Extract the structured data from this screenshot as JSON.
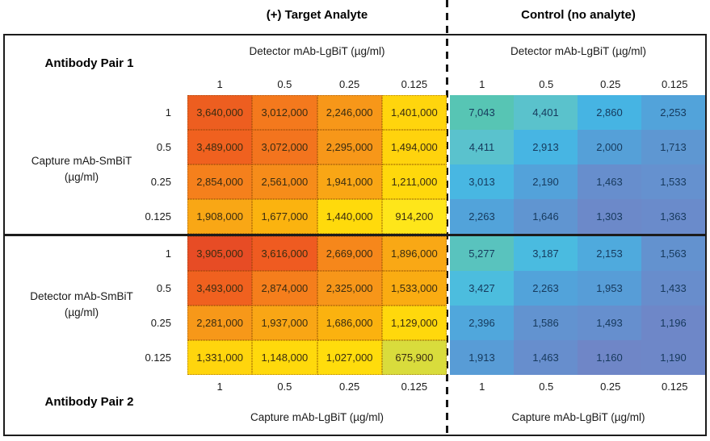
{
  "titles": {
    "target": "(+) Target Analyte",
    "control": "Control (no analyte)"
  },
  "labels": {
    "pair1": "Antibody Pair 1",
    "pair2": "Antibody Pair 2",
    "detector_lgbit": "Detector mAb-LgBiT (µg/ml)",
    "capture_lgbit": "Capture mAb-LgBiT (µg/ml)",
    "capture_smbit_line1": "Capture mAb-SmBiT",
    "detector_smbit_line1": "Detector mAb-SmBiT",
    "unit": "(µg/ml)"
  },
  "chart_data": [
    {
      "id": "pair1-target",
      "type": "heatmap",
      "title": "Antibody Pair 1 — (+) Target Analyte",
      "x_label": "Detector mAb-LgBiT (µg/ml)",
      "y_label": "Capture mAb-SmBiT (µg/ml)",
      "x_ticks": [
        "1",
        "0.5",
        "0.25",
        "0.125"
      ],
      "y_ticks": [
        "1",
        "0.5",
        "0.25",
        "0.125"
      ],
      "values": [
        [
          3640000,
          3012000,
          2246000,
          1401000
        ],
        [
          3489000,
          3072000,
          2295000,
          1494000
        ],
        [
          2854000,
          2561000,
          1941000,
          1211000
        ],
        [
          1908000,
          1677000,
          1440000,
          914200
        ]
      ],
      "display": [
        [
          "3,640,000",
          "3,012,000",
          "2,246,000",
          "1,401,000"
        ],
        [
          "3,489,000",
          "3,072,000",
          "2,295,000",
          "1,494,000"
        ],
        [
          "2,854,000",
          "2,561,000",
          "1,941,000",
          "1,211,000"
        ],
        [
          "1,908,000",
          "1,677,000",
          "1,440,000",
          "914,200"
        ]
      ],
      "cell_colors": [
        [
          "#ED5E20",
          "#F4791D",
          "#F79719",
          "#FFD50D"
        ],
        [
          "#F0611F",
          "#F3741E",
          "#F79719",
          "#FFD30D"
        ],
        [
          "#F5801C",
          "#F68C1A",
          "#F9A615",
          "#FFD80C"
        ],
        [
          "#F9A715",
          "#FBB30F",
          "#FFDA0C",
          "#FEE61A"
        ]
      ],
      "text_color": "#3a2c10",
      "dotted_borders": true
    },
    {
      "id": "pair1-control",
      "type": "heatmap",
      "title": "Antibody Pair 1 — Control (no analyte)",
      "x_label": "Detector mAb-LgBiT (µg/ml)",
      "y_label": "Capture mAb-SmBiT (µg/ml)",
      "x_ticks": [
        "1",
        "0.5",
        "0.25",
        "0.125"
      ],
      "y_ticks": [
        "1",
        "0.5",
        "0.25",
        "0.125"
      ],
      "values": [
        [
          7043,
          4401,
          2860,
          2253
        ],
        [
          4411,
          2913,
          2000,
          1713
        ],
        [
          3013,
          2190,
          1463,
          1533
        ],
        [
          2263,
          1646,
          1303,
          1363
        ]
      ],
      "display": [
        [
          "7,043",
          "4,401",
          "2,860",
          "2,253"
        ],
        [
          "4,411",
          "2,913",
          "2,000",
          "1,713"
        ],
        [
          "3,013",
          "2,190",
          "1,463",
          "1,533"
        ],
        [
          "2,263",
          "1,646",
          "1,303",
          "1,363"
        ]
      ],
      "cell_colors": [
        [
          "#57C5B4",
          "#5AC2CC",
          "#46B4E3",
          "#52A3DA"
        ],
        [
          "#5AC2CD",
          "#47B5E3",
          "#55A0D8",
          "#5E97D2"
        ],
        [
          "#48B7E2",
          "#53A2DA",
          "#678ECD",
          "#6591CF"
        ],
        [
          "#52A3DA",
          "#6095D1",
          "#6C89C9",
          "#6A8BCB"
        ]
      ],
      "text_color": "#16395c",
      "dotted_borders": false
    },
    {
      "id": "pair2-target",
      "type": "heatmap",
      "title": "Antibody Pair 2 — (+) Target Analyte",
      "x_label": "Capture mAb-LgBiT (µg/ml)",
      "y_label": "Detector mAb-SmBiT (µg/ml)",
      "x_ticks": [
        "1",
        "0.5",
        "0.25",
        "0.125"
      ],
      "y_ticks": [
        "1",
        "0.5",
        "0.25",
        "0.125"
      ],
      "values": [
        [
          3905000,
          3616000,
          2669000,
          1896000
        ],
        [
          3493000,
          2874000,
          2325000,
          1533000
        ],
        [
          2281000,
          1937000,
          1686000,
          1129000
        ],
        [
          1331000,
          1148000,
          1027000,
          675900
        ]
      ],
      "display": [
        [
          "3,905,000",
          "3,616,000",
          "2,669,000",
          "1,896,000"
        ],
        [
          "3,493,000",
          "2,874,000",
          "2,325,000",
          "1,533,000"
        ],
        [
          "2,281,000",
          "1,937,000",
          "1,686,000",
          "1,129,000"
        ],
        [
          "1,331,000",
          "1,148,000",
          "1,027,000",
          "675,900"
        ]
      ],
      "cell_colors": [
        [
          "#E74C25",
          "#EF5B21",
          "#F6871B",
          "#F9A815"
        ],
        [
          "#F0611F",
          "#F57E1C",
          "#F79619",
          "#FAAC12"
        ],
        [
          "#F79819",
          "#F9A615",
          "#FBB20F",
          "#FFD80C"
        ],
        [
          "#FFD50D",
          "#FFD90C",
          "#FFDC0C",
          "#D9DC3C"
        ]
      ],
      "text_color": "#3a2c10",
      "dotted_borders": true
    },
    {
      "id": "pair2-control",
      "type": "heatmap",
      "title": "Antibody Pair 2 — Control (no analyte)",
      "x_label": "Capture mAb-LgBiT (µg/ml)",
      "y_label": "Detector mAb-SmBiT (µg/ml)",
      "x_ticks": [
        "1",
        "0.5",
        "0.25",
        "0.125"
      ],
      "y_ticks": [
        "1",
        "0.5",
        "0.25",
        "0.125"
      ],
      "values": [
        [
          5277,
          3187,
          2153,
          1563
        ],
        [
          3427,
          2263,
          1953,
          1433
        ],
        [
          2396,
          1586,
          1493,
          1196
        ],
        [
          1913,
          1463,
          1160,
          1190
        ]
      ],
      "display": [
        [
          "5,277",
          "3,187",
          "2,153",
          "1,563"
        ],
        [
          "3,427",
          "2,263",
          "1,953",
          "1,433"
        ],
        [
          "2,396",
          "1,586",
          "1,493",
          "1,196"
        ],
        [
          "1,913",
          "1,463",
          "1,160",
          "1,190"
        ]
      ],
      "cell_colors": [
        [
          "#59C3BE",
          "#4ABBE0",
          "#4FAADD",
          "#6392CF"
        ],
        [
          "#4CBDDE",
          "#52A3DA",
          "#579DD7",
          "#688DCC"
        ],
        [
          "#50A7DC",
          "#6293D0",
          "#668FCE",
          "#6E87C8"
        ],
        [
          "#589CD6",
          "#678ECD",
          "#6F86C7",
          "#6E87C8"
        ]
      ],
      "text_color": "#16395c",
      "dotted_borders": false
    }
  ],
  "colors": {
    "border": "#1c1c1c",
    "high_value": "#E74C25",
    "mid_value": "#FFD80C",
    "low_value": "#6F86C7"
  }
}
